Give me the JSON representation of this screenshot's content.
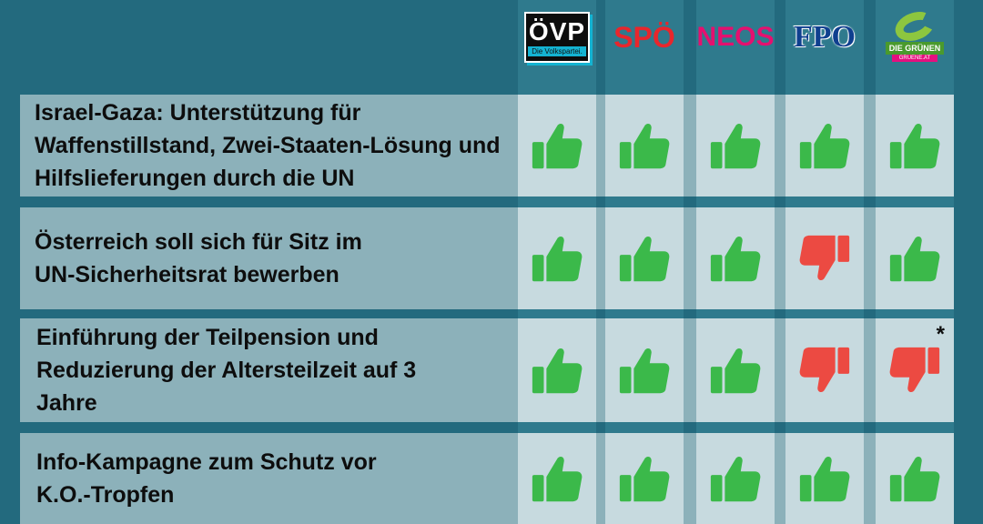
{
  "parties": [
    {
      "name": "ÖVP",
      "tagline": "Die Volkspartei."
    },
    {
      "name": "SPÖ"
    },
    {
      "name": "NEOS"
    },
    {
      "name": "FPÖ",
      "display": "FPO"
    },
    {
      "name": "Die Grünen",
      "display": "DIE GRÜNEN",
      "tagline": "GRUENE.AT"
    }
  ],
  "colors": {
    "background": "#236a7e",
    "row": "#8cb1ba",
    "cell": "#c7dadf",
    "thumb_up": "#3bb94a",
    "thumb_down": "#ec4a42"
  },
  "rows": [
    {
      "label": "Israel-Gaza: Unterstützung für Waffenstillstand, Zwei-Staaten-Lösung und Hilfslieferungen durch die UN",
      "votes": [
        "up",
        "up",
        "up",
        "up",
        "up"
      ]
    },
    {
      "label": "Österreich soll sich für Sitz im UN-Sicherheitsrat bewerben",
      "votes": [
        "up",
        "up",
        "up",
        "down",
        "up"
      ]
    },
    {
      "label": "Einführung der Teilpension und Reduzierung der Altersteilzeit auf 3 Jahre",
      "votes": [
        "up",
        "up",
        "up",
        "down",
        "down"
      ],
      "footnote_mark": "*"
    },
    {
      "label": "Info-Kampagne zum Schutz vor K.O.-Tropfen",
      "votes": [
        "up",
        "up",
        "up",
        "up",
        "up"
      ]
    }
  ]
}
